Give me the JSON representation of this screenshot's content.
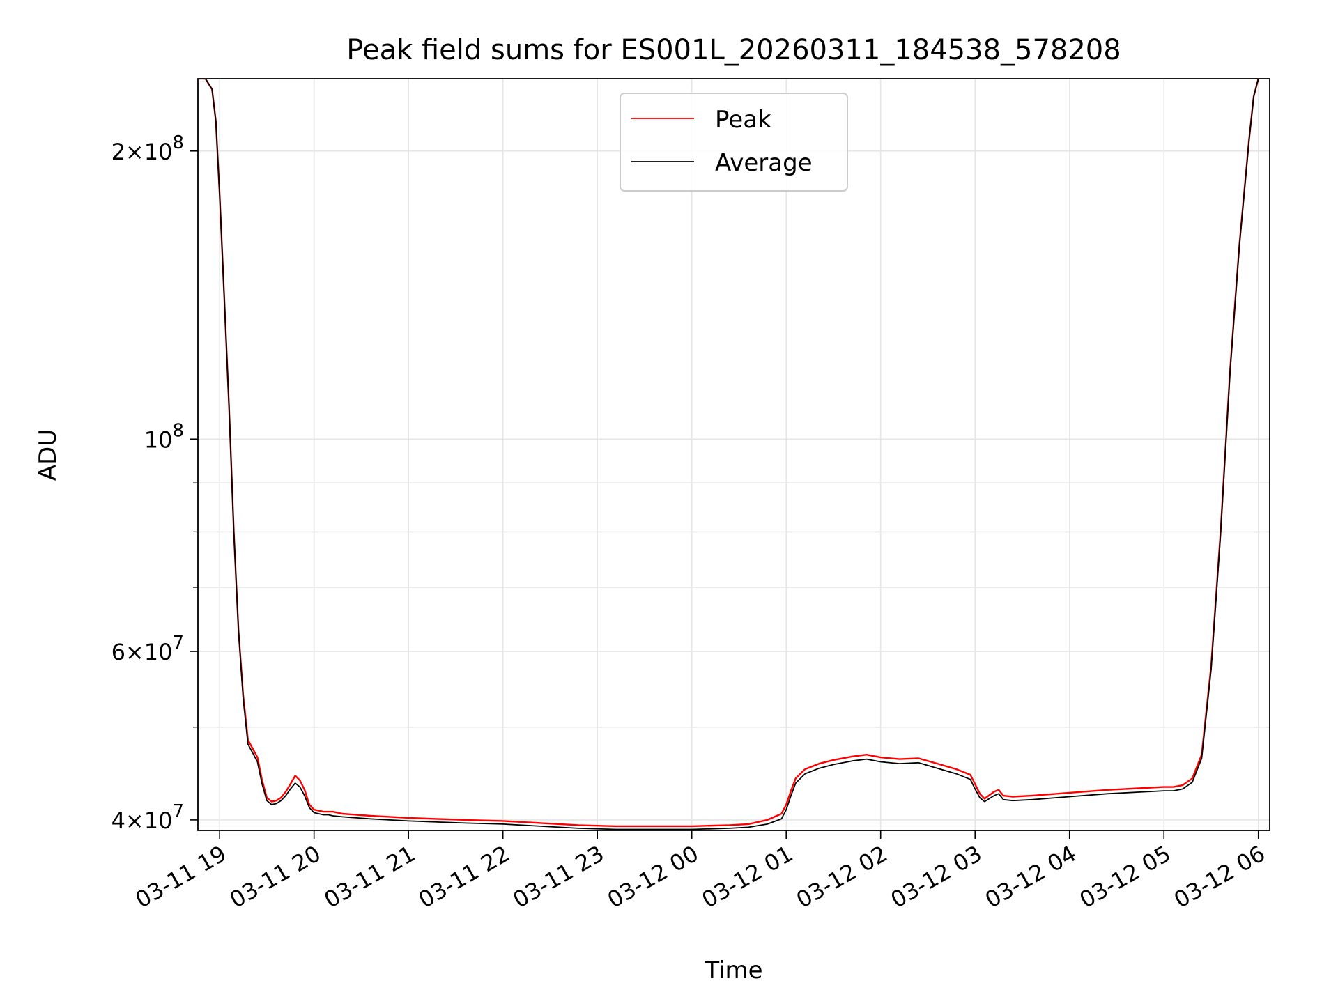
{
  "chart_data": {
    "type": "line",
    "title": "Peak field sums for ES001L_20260311_184538_578208",
    "xlabel": "Time",
    "ylabel": "ADU",
    "yscale": "log",
    "grid": true,
    "legend_position": "top-center",
    "colors": {
      "peak": "#ff0000",
      "average": "#000000",
      "grid": "#e6e6e6"
    },
    "xlim_hours": [
      18.77,
      30.12
    ],
    "ylim": [
      39000000,
      238000000
    ],
    "x_ticks": [
      {
        "hour": 19,
        "label": "03-11 19"
      },
      {
        "hour": 20,
        "label": "03-11 20"
      },
      {
        "hour": 21,
        "label": "03-11 21"
      },
      {
        "hour": 22,
        "label": "03-11 22"
      },
      {
        "hour": 23,
        "label": "03-11 23"
      },
      {
        "hour": 24,
        "label": "03-12 00"
      },
      {
        "hour": 25,
        "label": "03-12 01"
      },
      {
        "hour": 26,
        "label": "03-12 02"
      },
      {
        "hour": 27,
        "label": "03-12 03"
      },
      {
        "hour": 28,
        "label": "03-12 04"
      },
      {
        "hour": 29,
        "label": "03-12 05"
      },
      {
        "hour": 30,
        "label": "03-12 06"
      }
    ],
    "y_ticks": [
      {
        "value": 40000000,
        "mantissa": "4",
        "exponent": "7"
      },
      {
        "value": 60000000,
        "mantissa": "6",
        "exponent": "7"
      },
      {
        "value": 100000000,
        "mantissa": "",
        "exponent": "8"
      },
      {
        "value": 200000000,
        "mantissa": "2",
        "exponent": "8"
      }
    ],
    "y_minor_ticks": [
      50000000,
      70000000,
      80000000,
      90000000
    ],
    "series": [
      {
        "name": "Peak",
        "color": "#ff0000",
        "x_hours": [
          18.78,
          18.85,
          18.92,
          18.96,
          19.0,
          19.05,
          19.1,
          19.15,
          19.2,
          19.25,
          19.3,
          19.35,
          19.4,
          19.45,
          19.5,
          19.55,
          19.6,
          19.65,
          19.7,
          19.75,
          19.8,
          19.85,
          19.9,
          19.95,
          20.0,
          20.05,
          20.1,
          20.15,
          20.2,
          20.3,
          20.45,
          20.6,
          20.8,
          21.0,
          21.3,
          21.6,
          22.0,
          22.4,
          22.8,
          23.2,
          23.6,
          24.0,
          24.4,
          24.6,
          24.8,
          24.95,
          25.0,
          25.05,
          25.1,
          25.2,
          25.35,
          25.5,
          25.7,
          25.85,
          26.0,
          26.2,
          26.4,
          26.6,
          26.8,
          26.95,
          27.0,
          27.05,
          27.1,
          27.2,
          27.25,
          27.3,
          27.4,
          27.6,
          28.0,
          28.4,
          28.8,
          29.0,
          29.1,
          29.2,
          29.3,
          29.4,
          29.5,
          29.6,
          29.7,
          29.8,
          29.9,
          29.95,
          30.0
        ],
        "values": [
          238000000,
          238000000,
          232000000,
          215000000,
          180000000,
          140000000,
          108000000,
          80000000,
          63000000,
          54000000,
          48500000,
          47500000,
          46500000,
          44000000,
          42200000,
          41800000,
          41900000,
          42200000,
          42800000,
          43600000,
          44500000,
          44000000,
          43000000,
          41500000,
          41000000,
          40900000,
          40800000,
          40800000,
          40800000,
          40600000,
          40500000,
          40400000,
          40300000,
          40200000,
          40100000,
          40000000,
          39900000,
          39700000,
          39500000,
          39400000,
          39400000,
          39400000,
          39500000,
          39600000,
          40000000,
          40600000,
          41500000,
          42900000,
          44200000,
          45200000,
          45800000,
          46200000,
          46600000,
          46800000,
          46500000,
          46300000,
          46400000,
          45800000,
          45200000,
          44600000,
          43600000,
          42600000,
          42100000,
          42800000,
          43000000,
          42400000,
          42300000,
          42400000,
          42700000,
          43000000,
          43200000,
          43300000,
          43300000,
          43500000,
          44200000,
          46800000,
          58000000,
          80000000,
          118000000,
          160000000,
          205000000,
          228000000,
          238000000
        ]
      },
      {
        "name": "Average",
        "color": "#000000",
        "x_hours": [
          18.78,
          18.85,
          18.92,
          18.96,
          19.0,
          19.05,
          19.1,
          19.15,
          19.2,
          19.25,
          19.3,
          19.35,
          19.4,
          19.45,
          19.5,
          19.55,
          19.6,
          19.65,
          19.7,
          19.75,
          19.8,
          19.85,
          19.9,
          19.95,
          20.0,
          20.05,
          20.1,
          20.15,
          20.2,
          20.3,
          20.45,
          20.6,
          20.8,
          21.0,
          21.3,
          21.6,
          22.0,
          22.4,
          22.8,
          23.2,
          23.6,
          24.0,
          24.4,
          24.6,
          24.8,
          24.95,
          25.0,
          25.05,
          25.1,
          25.2,
          25.35,
          25.5,
          25.7,
          25.85,
          26.0,
          26.2,
          26.4,
          26.6,
          26.8,
          26.95,
          27.0,
          27.05,
          27.1,
          27.2,
          27.25,
          27.3,
          27.4,
          27.6,
          28.0,
          28.4,
          28.8,
          29.0,
          29.1,
          29.2,
          29.3,
          29.4,
          29.5,
          29.6,
          29.7,
          29.8,
          29.9,
          29.95,
          30.0
        ],
        "values": [
          238000000,
          238000000,
          232000000,
          215000000,
          180000000,
          140000000,
          108000000,
          80000000,
          63000000,
          53500000,
          48000000,
          47000000,
          46000000,
          43600000,
          41900000,
          41500000,
          41600000,
          41900000,
          42400000,
          43100000,
          43700000,
          43300000,
          42400000,
          41200000,
          40700000,
          40600000,
          40500000,
          40500000,
          40400000,
          40300000,
          40200000,
          40100000,
          40000000,
          39900000,
          39800000,
          39700000,
          39600000,
          39400000,
          39200000,
          39100000,
          39100000,
          39100000,
          39200000,
          39300000,
          39600000,
          40100000,
          41000000,
          42400000,
          43700000,
          44700000,
          45300000,
          45700000,
          46100000,
          46300000,
          46000000,
          45800000,
          45900000,
          45300000,
          44700000,
          44100000,
          43100000,
          42200000,
          41800000,
          42400000,
          42600000,
          42000000,
          41900000,
          42000000,
          42300000,
          42600000,
          42800000,
          42900000,
          42900000,
          43100000,
          43800000,
          46400000,
          57500000,
          79500000,
          117500000,
          159500000,
          204500000,
          228000000,
          238000000
        ]
      }
    ]
  }
}
